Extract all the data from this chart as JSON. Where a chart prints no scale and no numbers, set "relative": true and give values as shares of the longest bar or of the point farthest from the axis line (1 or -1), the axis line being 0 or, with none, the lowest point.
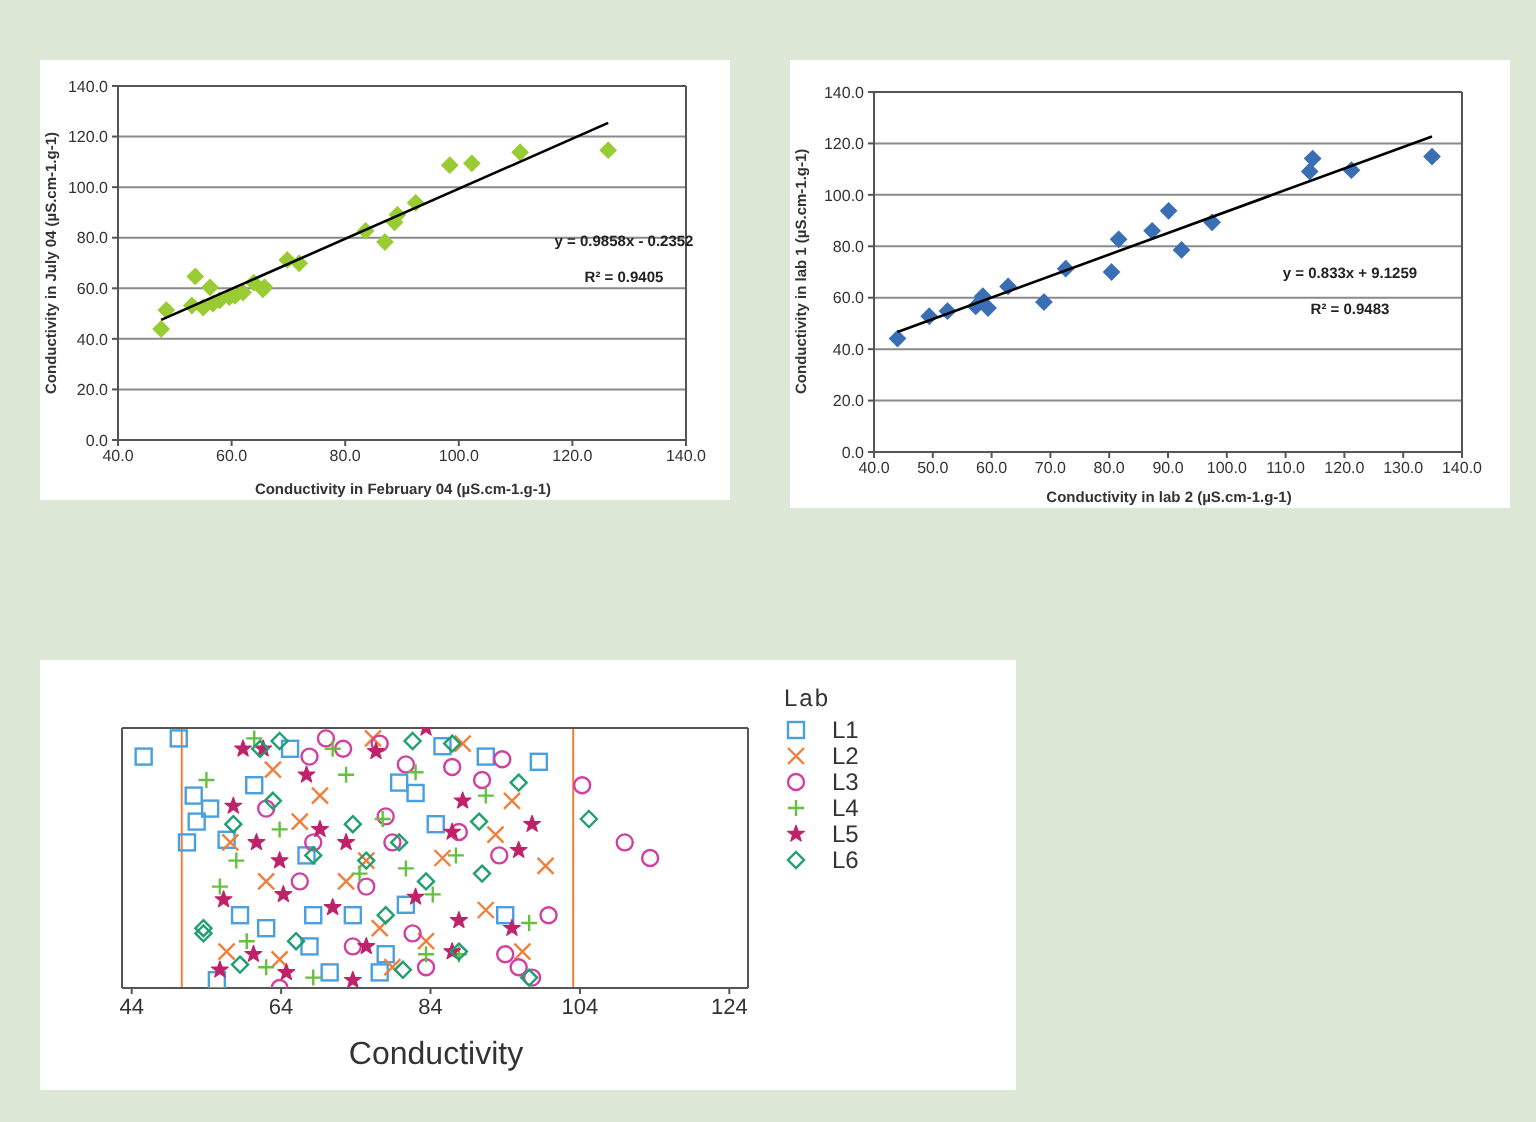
{
  "chart_data": [
    {
      "type": "scatter",
      "xlabel": "Conductivity in February 04 (µS.cm-1.g-1)",
      "ylabel": "Conductivity in July 04 (µS.cm-1.g-1)",
      "xlim": [
        40,
        140
      ],
      "xticks": [
        {
          "value": 40,
          "label": "40.0"
        },
        {
          "value": 60,
          "label": "60.0"
        },
        {
          "value": 80,
          "label": "80.0"
        },
        {
          "value": 100,
          "label": "100.0"
        },
        {
          "value": 120,
          "label": "120.0"
        },
        {
          "value": 140,
          "label": "140.0"
        }
      ],
      "ylim": [
        0,
        140
      ],
      "yticks": [
        {
          "value": 0,
          "label": "0.0"
        },
        {
          "value": 20,
          "label": "20.0"
        },
        {
          "value": 40,
          "label": "40.0"
        },
        {
          "value": 60,
          "label": "60.0"
        },
        {
          "value": 80,
          "label": "80.0"
        },
        {
          "value": 100,
          "label": "100.0"
        },
        {
          "value": 120,
          "label": "120.0"
        },
        {
          "value": 140,
          "label": "140.0"
        }
      ],
      "grid": "y",
      "annotations": [
        "y = 0.9858x - 0.2352",
        "R² = 0.9405"
      ],
      "series": [
        {
          "marker": "diamond",
          "color": "#99cc33",
          "x": [
            47.6,
            48.5,
            53.0,
            53.6,
            55.0,
            56.2,
            56.7,
            57.9,
            59.6,
            60.6,
            62.0,
            63.9,
            65.5,
            65.8,
            69.8,
            71.9,
            83.6,
            87.0,
            88.7,
            89.2,
            92.4,
            98.4,
            102.3,
            110.8,
            126.3
          ],
          "values": [
            43.9,
            51.4,
            53.2,
            64.7,
            52.4,
            60.4,
            53.9,
            55.2,
            56.5,
            57.0,
            58.3,
            62.2,
            59.6,
            60.4,
            71.2,
            69.9,
            82.7,
            78.3,
            86.1,
            89.1,
            93.8,
            108.7,
            109.4,
            113.8,
            114.6
          ]
        },
        {
          "type": "line",
          "marker": "none",
          "color": "#000000",
          "x": [
            47.6,
            126.3
          ],
          "values": [
            47.5,
            125.4
          ]
        }
      ]
    },
    {
      "type": "scatter",
      "xlabel": "Conductivity in lab 2 (µS.cm-1.g-1)",
      "ylabel": "Conductivity in lab 1 (µS.cm-1.g-1)",
      "xlim": [
        40,
        140
      ],
      "xticks": [
        {
          "value": 40,
          "label": "40.0"
        },
        {
          "value": 50,
          "label": "50.0"
        },
        {
          "value": 60,
          "label": "60.0"
        },
        {
          "value": 70,
          "label": "70.0"
        },
        {
          "value": 80,
          "label": "80.0"
        },
        {
          "value": 90,
          "label": "90.0"
        },
        {
          "value": 100,
          "label": "100.0"
        },
        {
          "value": 110,
          "label": "110.0"
        },
        {
          "value": 120,
          "label": "120.0"
        },
        {
          "value": 130,
          "label": "130.0"
        },
        {
          "value": 140,
          "label": "140.0"
        }
      ],
      "ylim": [
        0,
        140
      ],
      "yticks": [
        {
          "value": 0,
          "label": "0.0"
        },
        {
          "value": 20,
          "label": "20.0"
        },
        {
          "value": 40,
          "label": "40.0"
        },
        {
          "value": 60,
          "label": "60.0"
        },
        {
          "value": 80,
          "label": "80.0"
        },
        {
          "value": 100,
          "label": "100.0"
        },
        {
          "value": 120,
          "label": "120.0"
        },
        {
          "value": 140,
          "label": "140.0"
        }
      ],
      "grid": "y",
      "annotations": [
        "y = 0.833x + 9.1259",
        "R² = 0.9483"
      ],
      "series": [
        {
          "marker": "diamond",
          "color": "#3a6fb5",
          "x": [
            44.0,
            49.4,
            52.5,
            57.3,
            58.5,
            59.4,
            62.8,
            68.9,
            72.6,
            80.4,
            81.6,
            87.3,
            90.1,
            92.3,
            97.5,
            114.1,
            114.6,
            121.2,
            134.9
          ],
          "values": [
            44.1,
            52.8,
            54.8,
            56.6,
            60.6,
            56.0,
            64.4,
            58.3,
            71.3,
            70.0,
            82.7,
            86.0,
            93.8,
            78.6,
            89.3,
            109.1,
            114.1,
            109.6,
            114.9
          ]
        },
        {
          "type": "line",
          "marker": "none",
          "color": "#000000",
          "x": [
            44.0,
            134.9
          ],
          "values": [
            46.7,
            122.7
          ]
        }
      ]
    },
    {
      "type": "scatter",
      "xlabel": "Conductivity",
      "legend_title": "Lab",
      "legend": "right",
      "relative": true,
      "tick_labels": "x",
      "xlim": [
        42.7,
        126.5
      ],
      "xticks": [
        44,
        64,
        84,
        104,
        124
      ],
      "ref_lines": [
        {
          "axis": "x",
          "value": 50.7,
          "color": "#f07f3c"
        },
        {
          "axis": "x",
          "value": 103.1,
          "color": "#f07f3c"
        }
      ],
      "series": [
        {
          "name": "L1",
          "color": "#4a9fe0",
          "marker": "square",
          "x": [
            45.6,
            50.3,
            52.3,
            51.4,
            52.7,
            54.5,
            56.7,
            55.4,
            60.4,
            58.5,
            62.0,
            65.2,
            67.4,
            68.3,
            73.6,
            79.8,
            82.0,
            84.7,
            85.6,
            91.4,
            98.5,
            94.0,
            80.7,
            78.0,
            67.8,
            70.5,
            77.2
          ],
          "values": [
            0.89,
            0.96,
            0.74,
            0.56,
            0.64,
            0.69,
            0.57,
            0.03,
            0.78,
            0.28,
            0.23,
            0.92,
            0.51,
            0.28,
            0.28,
            0.79,
            0.75,
            0.63,
            0.93,
            0.89,
            0.87,
            0.28,
            0.32,
            0.13,
            0.16,
            0.06,
            0.06
          ]
        },
        {
          "name": "L2",
          "color": "#f07f3c",
          "marker": "x",
          "x": [
            62.9,
            57.2,
            66.5,
            62.0,
            75.4,
            77.2,
            78.9,
            85.6,
            92.7,
            94.9,
            99.4,
            91.4,
            96.3,
            88.3,
            76.3,
            72.7,
            63.8,
            56.7,
            69.2,
            83.4
          ],
          "values": [
            0.84,
            0.56,
            0.64,
            0.41,
            0.49,
            0.23,
            0.08,
            0.5,
            0.59,
            0.72,
            0.47,
            0.3,
            0.14,
            0.94,
            0.96,
            0.41,
            0.11,
            0.14,
            0.74,
            0.18
          ]
        },
        {
          "name": "L3",
          "color": "#d040a0",
          "marker": "circle",
          "x": [
            104.3,
            110.0,
            113.4,
            99.8,
            93.6,
            86.9,
            90.9,
            80.7,
            78.0,
            70.0,
            72.3,
            67.8,
            62.0,
            66.5,
            68.3,
            78.9,
            75.4,
            83.4,
            94.0,
            95.8,
            97.6,
            93.2,
            87.8,
            77.2,
            63.8,
            73.6,
            81.6
          ],
          "values": [
            0.78,
            0.56,
            0.5,
            0.28,
            0.88,
            0.85,
            0.8,
            0.86,
            0.66,
            0.96,
            0.92,
            0.89,
            0.69,
            0.41,
            0.56,
            0.56,
            0.39,
            0.08,
            0.13,
            0.08,
            0.04,
            0.51,
            0.6,
            0.94,
            0.0,
            0.16,
            0.21
          ]
        },
        {
          "name": "L4",
          "color": "#66c040",
          "marker": "cross",
          "x": [
            60.4,
            54.0,
            55.8,
            58.0,
            62.0,
            68.3,
            74.5,
            80.7,
            84.3,
            87.4,
            87.8,
            91.4,
            97.2,
            70.9,
            77.6,
            63.8,
            82.0,
            72.7,
            59.4,
            83.4
          ],
          "values": [
            0.96,
            0.8,
            0.39,
            0.49,
            0.08,
            0.04,
            0.44,
            0.46,
            0.36,
            0.51,
            0.13,
            0.74,
            0.25,
            0.92,
            0.65,
            0.61,
            0.83,
            0.82,
            0.18,
            0.13
          ]
        },
        {
          "name": "L5",
          "color": "#c0226a",
          "marker": "star",
          "x": [
            58.9,
            57.6,
            60.7,
            63.8,
            64.3,
            69.2,
            72.7,
            76.7,
            83.4,
            88.3,
            86.9,
            97.6,
            95.8,
            87.8,
            82.0,
            56.3,
            60.3,
            55.8,
            64.7,
            73.6,
            75.4,
            70.9,
            67.4,
            61.6,
            94.9,
            86.9
          ],
          "values": [
            0.92,
            0.7,
            0.56,
            0.49,
            0.36,
            0.61,
            0.56,
            0.91,
            1.0,
            0.72,
            0.6,
            0.63,
            0.53,
            0.26,
            0.35,
            0.34,
            0.13,
            0.07,
            0.06,
            0.03,
            0.16,
            0.31,
            0.82,
            0.92,
            0.23,
            0.14
          ]
        },
        {
          "name": "L6",
          "color": "#20a070",
          "marker": "diamond",
          "x": [
            105.2,
            53.6,
            53.6,
            57.6,
            61.2,
            63.8,
            73.6,
            79.8,
            83.4,
            90.9,
            90.5,
            95.8,
            97.2,
            87.8,
            81.6,
            86.9,
            78.0,
            66.0,
            58.5,
            68.3,
            75.4,
            80.3,
            62.9
          ],
          "values": [
            0.65,
            0.23,
            0.21,
            0.63,
            0.92,
            0.95,
            0.63,
            0.56,
            0.41,
            0.44,
            0.64,
            0.79,
            0.04,
            0.14,
            0.95,
            0.94,
            0.28,
            0.18,
            0.09,
            0.51,
            0.49,
            0.07,
            0.72
          ]
        }
      ]
    }
  ]
}
